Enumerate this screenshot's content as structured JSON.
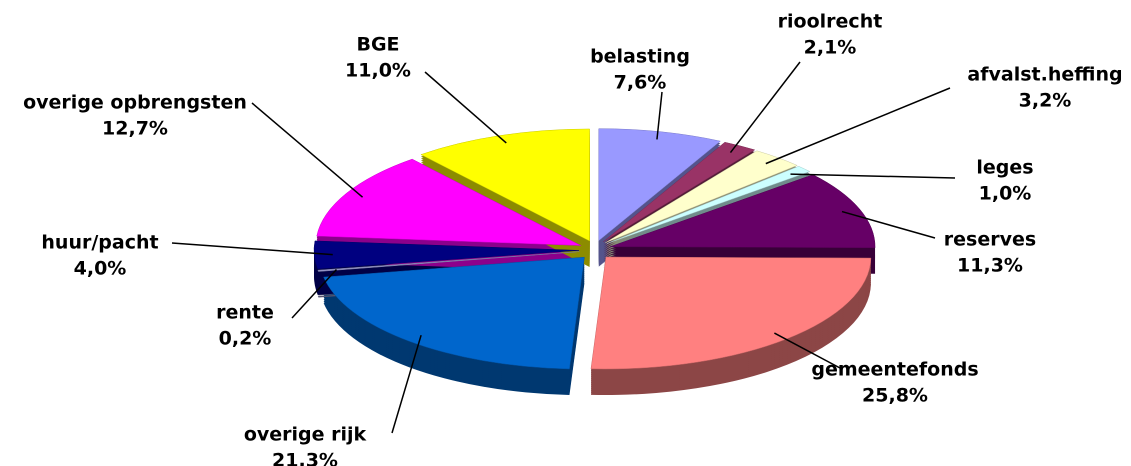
{
  "chart_data": {
    "type": "pie",
    "categories": [
      "belasting",
      "rioolrecht",
      "afvalst.heffing",
      "leges",
      "reserves",
      "gemeentefonds",
      "overige rijk",
      "rente",
      "huur/pacht",
      "overige opbrengsten",
      "BGE"
    ],
    "values": [
      7.6,
      2.1,
      3.2,
      1.0,
      11.3,
      25.8,
      21.3,
      0.2,
      4.0,
      12.7,
      11.0
    ],
    "value_labels": [
      "7,6%",
      "2,1%",
      "3,2%",
      "1,0%",
      "11,3%",
      "25,8%",
      "21,3%",
      "0,2%",
      "4,0%",
      "12,7%",
      "11,0%"
    ],
    "colors": [
      "#9999ff",
      "#993366",
      "#ffffcc",
      "#ccffff",
      "#660066",
      "#ff8080",
      "#0066cc",
      "#9999cc",
      "#000080",
      "#ff00ff",
      "#ffff00"
    ]
  }
}
